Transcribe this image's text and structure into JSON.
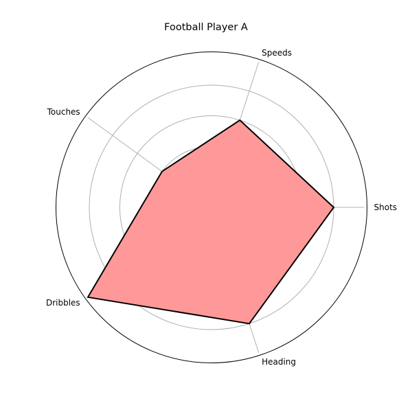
{
  "chart_data": {
    "type": "radar",
    "title": "Football Player A",
    "categories": [
      "Shots",
      "Speeds",
      "Touches",
      "Dribbles",
      "Heading"
    ],
    "series": [
      {
        "values": [
          4,
          3,
          2,
          5,
          4
        ]
      }
    ],
    "rlim": [
      0,
      5
    ],
    "rgrid": [
      1,
      2,
      3,
      4
    ],
    "grid": true,
    "colors": {
      "fill": "#ff9999",
      "line": "#000000",
      "grid": "#b0b0b0"
    }
  }
}
